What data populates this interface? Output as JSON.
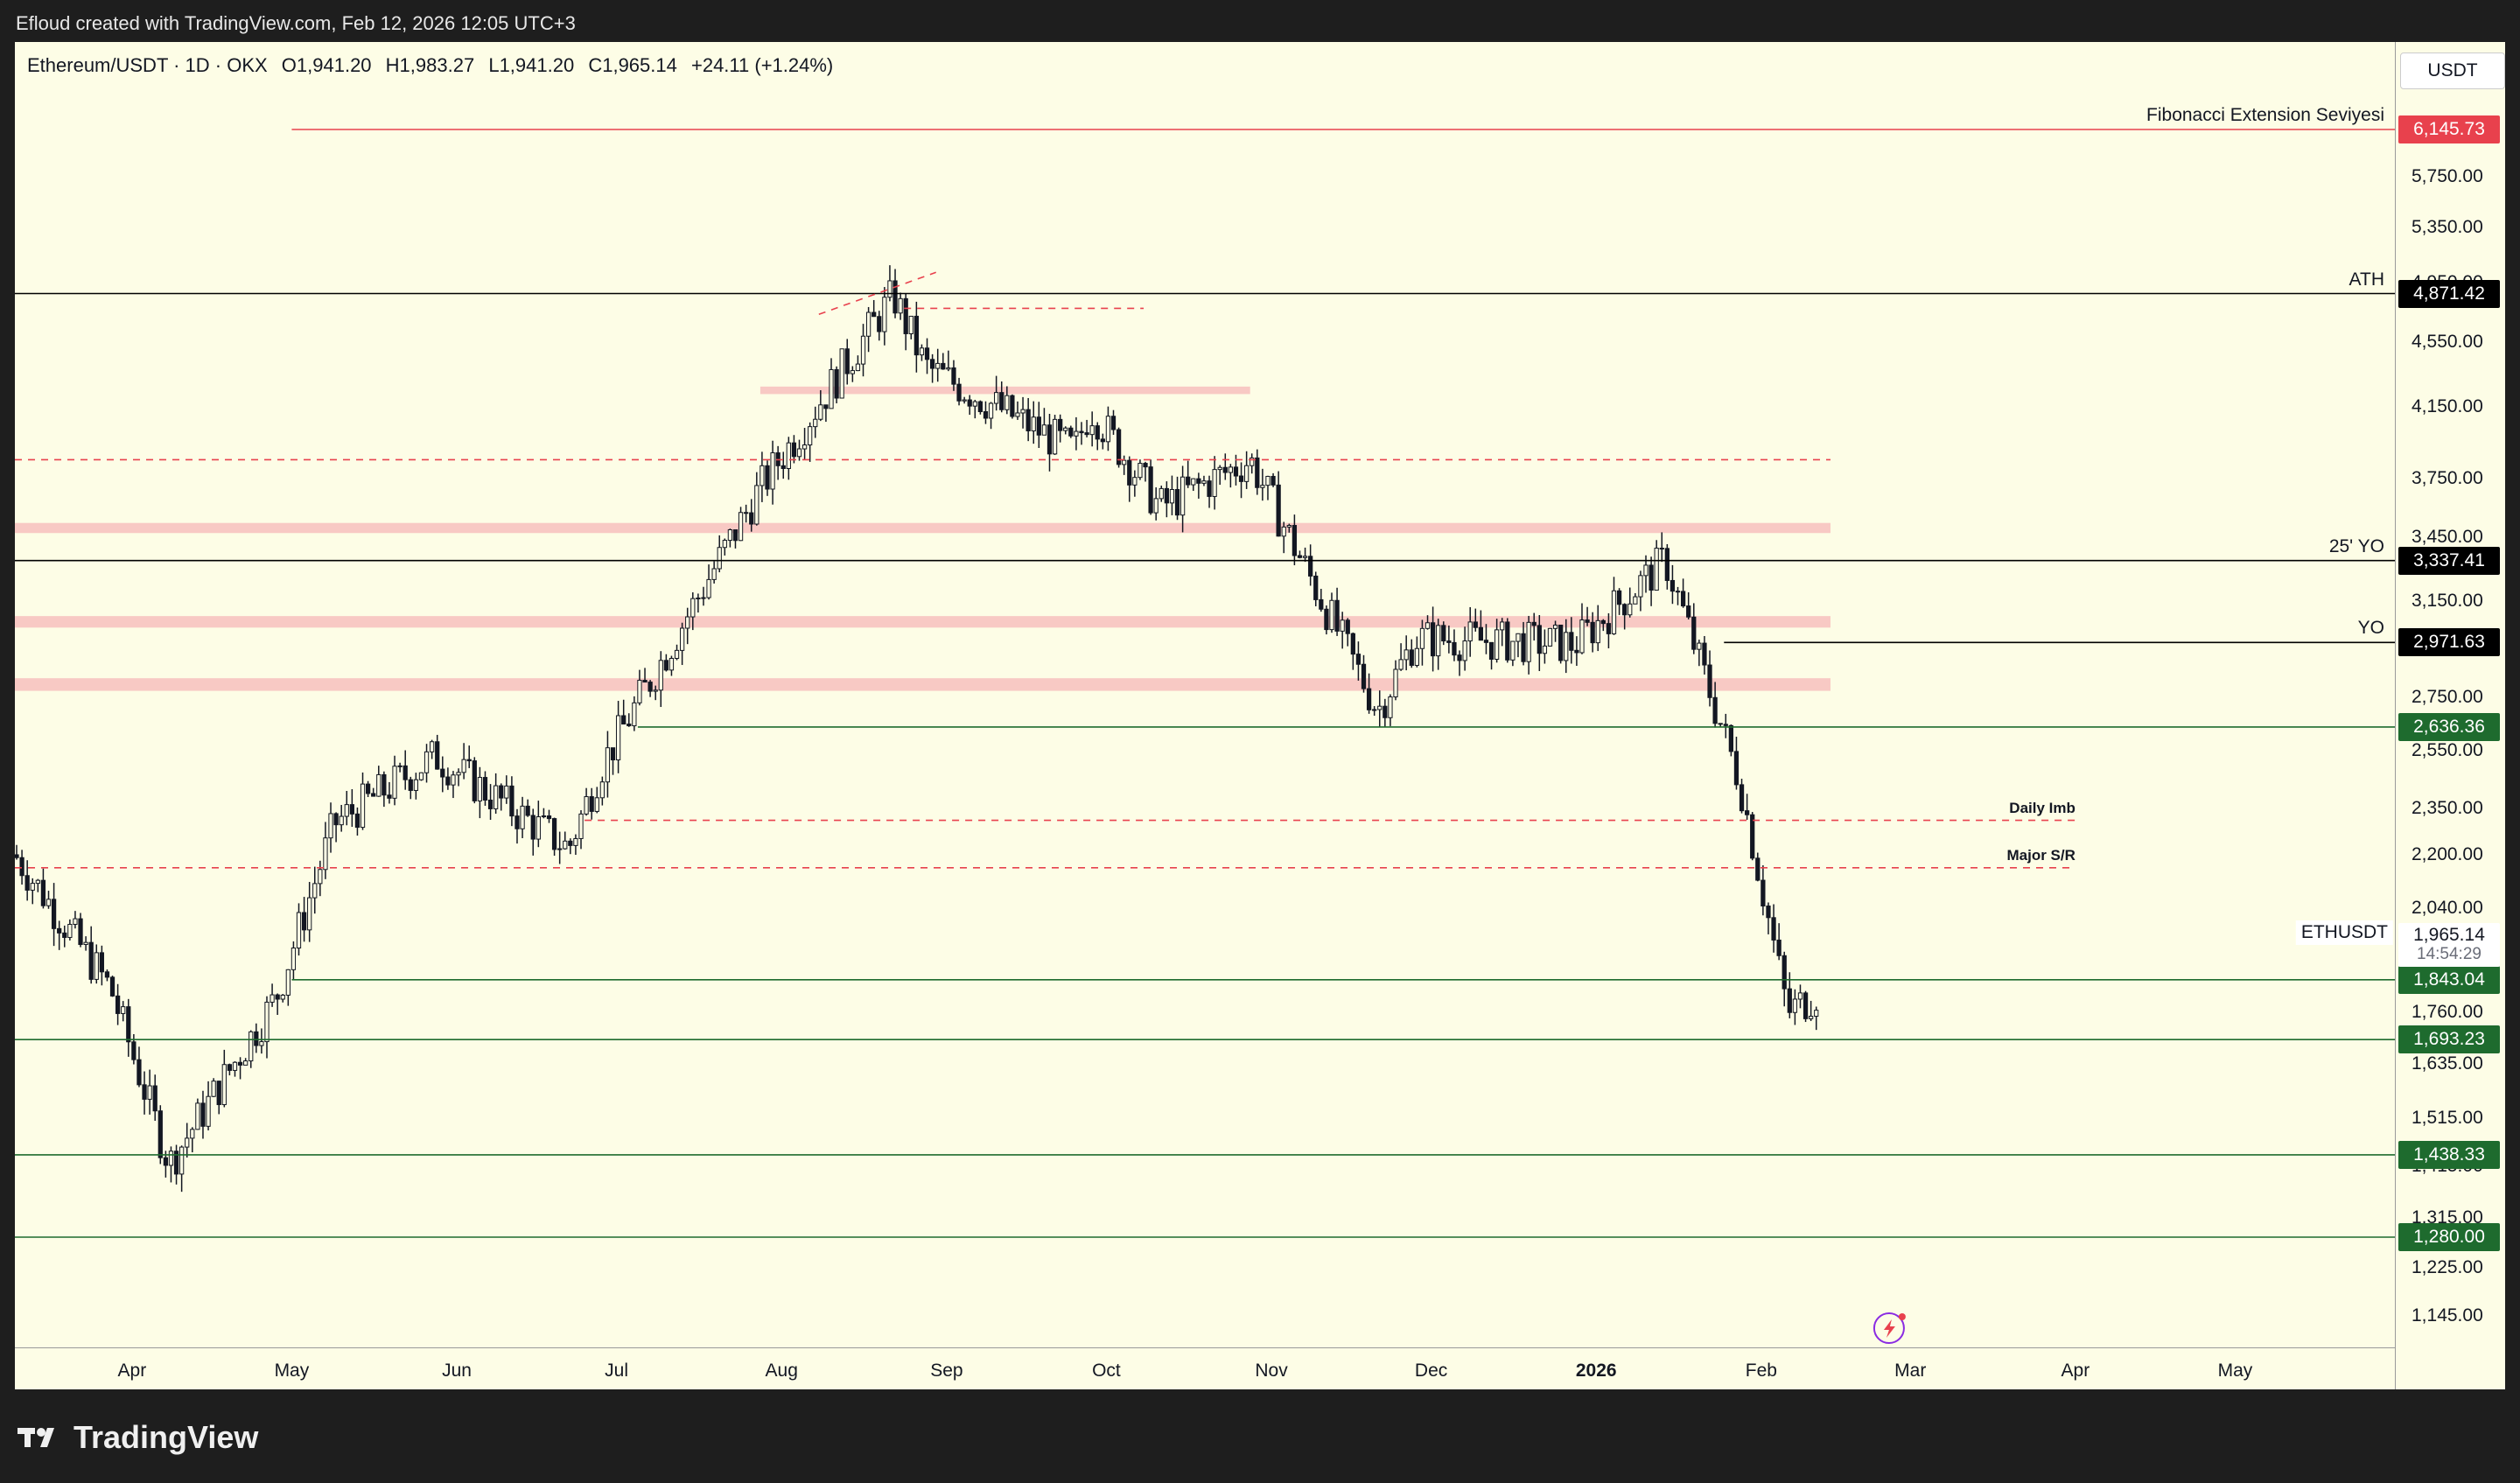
{
  "header": {
    "credit": "Efloud created with TradingView.com, Feb 12, 2026 12:05 UTC+3"
  },
  "legend": {
    "symbol": "Ethereum/USDT · 1D · OKX",
    "open": "O1,941.20",
    "high": "H1,983.27",
    "low": "L1,941.20",
    "close": "C1,965.14",
    "change": "+24.11 (+1.24%)"
  },
  "axis": {
    "currency": "USDT",
    "y_ticks": [
      "5,750.00",
      "5,350.00",
      "4,950.00",
      "4,550.00",
      "4,150.00",
      "3,750.00",
      "3,450.00",
      "3,150.00",
      "2,750.00",
      "2,550.00",
      "2,350.00",
      "2,200.00",
      "2,040.00",
      "1,760.00",
      "1,635.00",
      "1,515.00",
      "1,415.00",
      "1,315.00",
      "1,225.00",
      "1,145.00"
    ],
    "x_ticks": [
      {
        "label": "Apr",
        "bold": false
      },
      {
        "label": "May",
        "bold": false
      },
      {
        "label": "Jun",
        "bold": false
      },
      {
        "label": "Jul",
        "bold": false
      },
      {
        "label": "Aug",
        "bold": false
      },
      {
        "label": "Sep",
        "bold": false
      },
      {
        "label": "Oct",
        "bold": false
      },
      {
        "label": "Nov",
        "bold": false
      },
      {
        "label": "Dec",
        "bold": false
      },
      {
        "label": "2026",
        "bold": true
      },
      {
        "label": "Feb",
        "bold": false
      },
      {
        "label": "Mar",
        "bold": false
      },
      {
        "label": "Apr",
        "bold": false
      },
      {
        "label": "May",
        "bold": false
      }
    ]
  },
  "price_labels": [
    {
      "value": "6,145.73",
      "color": "#e8414d"
    },
    {
      "value": "4,871.42",
      "color": "#000000"
    },
    {
      "value": "3,337.41",
      "color": "#000000"
    },
    {
      "value": "2,971.63",
      "color": "#000000"
    },
    {
      "value": "2,636.36",
      "color": "#1e6b2e"
    },
    {
      "value": "1,843.04",
      "color": "#1e6b2e"
    },
    {
      "value": "1,693.23",
      "color": "#1e6b2e"
    },
    {
      "value": "1,438.33",
      "color": "#1e6b2e"
    },
    {
      "value": "1,280.00",
      "color": "#1e6b2e"
    }
  ],
  "current": {
    "price": "1,965.14",
    "countdown": "14:54:29",
    "symbol_tag": "ETHUSDT"
  },
  "level_texts": {
    "fib": "Fibonacci Extension Seviyesi",
    "ath": "ATH",
    "yo25": "25' YO",
    "yo": "YO",
    "daily_imb": "Daily Imb",
    "major_sr": "Major S/R"
  },
  "brand": {
    "name": "TradingView"
  },
  "chart_data": {
    "type": "candlestick",
    "symbol": "ETHUSDT",
    "timeframe": "1D",
    "x_range": [
      "2025-03-10",
      "2026-05-31"
    ],
    "y_scale": "log",
    "ylim": [
      1100,
      6600
    ],
    "horizontal_levels": [
      {
        "price": 6145.73,
        "color": "#e8414d",
        "style": "solid",
        "text": "Fibonacci Extension Seviyesi"
      },
      {
        "price": 4871.42,
        "color": "#000000",
        "style": "solid",
        "text": "ATH"
      },
      {
        "price": 3337.41,
        "color": "#000000",
        "style": "solid",
        "text": "25' YO"
      },
      {
        "price": 2971.63,
        "color": "#000000",
        "style": "solid",
        "text": "YO"
      },
      {
        "price": 2636.36,
        "color": "#1e6b2e",
        "style": "solid"
      },
      {
        "price": 1843.04,
        "color": "#1e6b2e",
        "style": "solid"
      },
      {
        "price": 1693.23,
        "color": "#1e6b2e",
        "style": "solid"
      },
      {
        "price": 1438.33,
        "color": "#1e6b2e",
        "style": "solid"
      },
      {
        "price": 1280.0,
        "color": "#1e6b2e",
        "style": "solid"
      },
      {
        "price": 3850,
        "color": "#e8414d",
        "style": "dashed"
      },
      {
        "price": 2310,
        "color": "#e8414d",
        "style": "dashed",
        "text": "Daily Imb"
      },
      {
        "price": 2160,
        "color": "#e8414d",
        "style": "dashed",
        "text": "Major S/R"
      }
    ],
    "zones": [
      {
        "price_low": 3470,
        "price_high": 3520
      },
      {
        "price_low": 3035,
        "price_high": 3085
      },
      {
        "price_low": 2775,
        "price_high": 2825
      },
      {
        "price_low": 4225,
        "price_high": 4270
      }
    ],
    "monthly_closes": [
      {
        "month": "2025-03",
        "close": 1820
      },
      {
        "month": "2025-04",
        "close": 1795
      },
      {
        "month": "2025-05",
        "close": 2530
      },
      {
        "month": "2025-06",
        "close": 2490
      },
      {
        "month": "2025-07",
        "close": 3700
      },
      {
        "month": "2025-08",
        "close": 4390
      },
      {
        "month": "2025-09",
        "close": 4145
      },
      {
        "month": "2025-10",
        "close": 3850
      },
      {
        "month": "2025-11",
        "close": 2990
      },
      {
        "month": "2025-12",
        "close": 2965
      },
      {
        "month": "2026-01",
        "close": 2440
      },
      {
        "month": "2026-02",
        "close": 1965.14
      }
    ]
  }
}
